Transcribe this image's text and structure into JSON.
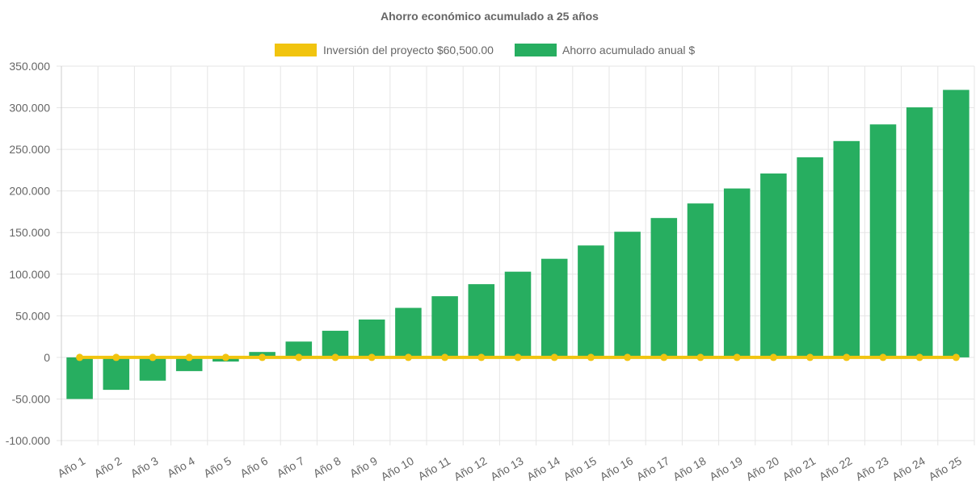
{
  "chart_data": {
    "type": "bar",
    "title": "Ahorro económico acumulado a 25 años",
    "categories": [
      "Año 1",
      "Año 2",
      "Año 3",
      "Año 4",
      "Año 5",
      "Año 6",
      "Año 7",
      "Año 8",
      "Año 9",
      "Año 10",
      "Año 11",
      "Año 12",
      "Año 13",
      "Año 14",
      "Año 15",
      "Año 16",
      "Año 17",
      "Año 18",
      "Año 19",
      "Año 20",
      "Año 21",
      "Año 22",
      "Año 23",
      "Año 24",
      "Año 25"
    ],
    "series": [
      {
        "name": "Inversión del proyecto $60,500.00",
        "kind": "line",
        "color": "#f1c40f",
        "values": [
          0,
          0,
          0,
          0,
          0,
          0,
          0,
          0,
          0,
          0,
          0,
          0,
          0,
          0,
          0,
          0,
          0,
          0,
          0,
          0,
          0,
          0,
          0,
          0,
          0
        ]
      },
      {
        "name": "Ahorro acumulado anual $",
        "kind": "bar",
        "color": "#27ae60",
        "values": [
          -50000,
          -39000,
          -28000,
          -16500,
          -5000,
          6500,
          19000,
          32000,
          45500,
          59500,
          73500,
          88000,
          103000,
          118500,
          134500,
          151000,
          167500,
          185000,
          203000,
          221000,
          240500,
          260000,
          280000,
          300500,
          321500
        ]
      }
    ],
    "yticks": [
      "350.000",
      "300.000",
      "250.000",
      "200.000",
      "150.000",
      "100.000",
      "50.000",
      "0",
      "-50.000",
      "-100.000"
    ],
    "ylim": [
      -100000,
      350000
    ],
    "xlabel": "",
    "ylabel": "",
    "grid": true,
    "legend_position": "top"
  }
}
